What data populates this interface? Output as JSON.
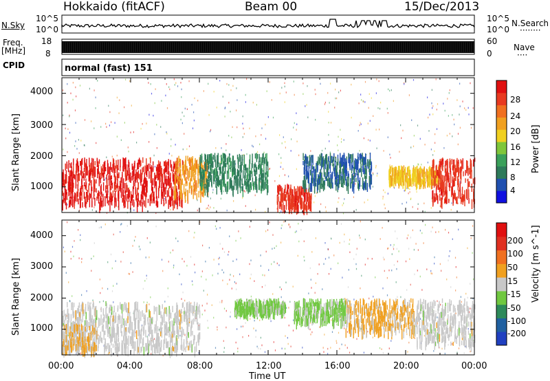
{
  "header": {
    "station": "Hokkaido (fitACF)",
    "beam": "Beam 00",
    "date": "15/Dec/2013"
  },
  "noise_panel": {
    "left_label": "N.Sky",
    "right_label": "N.Search",
    "left_ticks": [
      "10^5",
      "10^0"
    ],
    "right_ticks": [
      "10^5",
      "10^0"
    ]
  },
  "freq_panel": {
    "left_label_1": "Freq.",
    "left_label_2": "[MHz]",
    "right_label": "Nave",
    "left_ticks": [
      "18",
      "8"
    ],
    "right_ticks": [
      "60",
      "0"
    ]
  },
  "cpid_panel": {
    "label": "CPID",
    "text": "normal (fast) 151"
  },
  "chart_data": [
    {
      "type": "heatmap",
      "ylabel": "Slant Range [km]",
      "yticks": [
        "4000",
        "3000",
        "2000",
        "1000"
      ],
      "xlim": [
        "00:00",
        "24:00"
      ],
      "ylim": [
        180,
        4500
      ],
      "colorbar": {
        "label": "Power [dB]",
        "ticks": [
          "28",
          "24",
          "20",
          "16",
          "12",
          "8",
          "4"
        ],
        "range": [
          0,
          30
        ],
        "colors": [
          "#1010e0",
          "#2050b0",
          "#2e7a5a",
          "#3aa05a",
          "#7fc63a",
          "#f0d020",
          "#f0a020",
          "#f07020",
          "#e83a20",
          "#e01010"
        ]
      },
      "regions": [
        {
          "t": [
            0.0,
            7.0
          ],
          "r": [
            500,
            1950
          ],
          "value": 28
        },
        {
          "t": [
            6.5,
            8.5
          ],
          "r": [
            800,
            2000
          ],
          "value": 20
        },
        {
          "t": [
            8.0,
            12.0
          ],
          "r": [
            1000,
            2100
          ],
          "value": 8
        },
        {
          "t": [
            12.5,
            14.5
          ],
          "r": [
            400,
            1100
          ],
          "value": 26
        },
        {
          "t": [
            14.0,
            18.0
          ],
          "r": [
            1100,
            2100
          ],
          "value": 6
        },
        {
          "t": [
            19.0,
            22.0
          ],
          "r": [
            1200,
            1700
          ],
          "value": 18
        },
        {
          "t": [
            21.5,
            24.0
          ],
          "r": [
            600,
            1950
          ],
          "value": 26
        }
      ]
    },
    {
      "type": "heatmap",
      "ylabel": "Slant Range [km]",
      "xlabel": "Time UT",
      "yticks": [
        "4000",
        "3000",
        "2000",
        "1000"
      ],
      "xticks": [
        "00:00",
        "04:00",
        "08:00",
        "12:00",
        "16:00",
        "20:00",
        "00:00"
      ],
      "xlim": [
        "00:00",
        "24:00"
      ],
      "ylim": [
        180,
        4500
      ],
      "colorbar": {
        "label": "Velocity [m s^-1]",
        "ticks": [
          "200",
          "100",
          "50",
          "15",
          "-15",
          "-50",
          "-100",
          "-200"
        ],
        "range": [
          -250,
          250
        ],
        "colors": [
          "#2040c0",
          "#2060a0",
          "#2e8a5a",
          "#70c840",
          "#c8c8c8",
          "#f0a020",
          "#f07020",
          "#e03020",
          "#e01010"
        ]
      },
      "regions": [
        {
          "t": [
            0.0,
            8.0
          ],
          "r": [
            400,
            1900
          ],
          "value": 0
        },
        {
          "t": [
            0.0,
            2.0
          ],
          "r": [
            400,
            1200
          ],
          "value": 30
        },
        {
          "t": [
            10.0,
            13.0
          ],
          "r": [
            1600,
            2000
          ],
          "value": -40
        },
        {
          "t": [
            13.5,
            16.5
          ],
          "r": [
            1300,
            2000
          ],
          "value": -40
        },
        {
          "t": [
            16.5,
            20.5
          ],
          "r": [
            1000,
            2000
          ],
          "value": 40
        },
        {
          "t": [
            20.5,
            24.0
          ],
          "r": [
            600,
            2000
          ],
          "value": 0
        }
      ]
    }
  ]
}
